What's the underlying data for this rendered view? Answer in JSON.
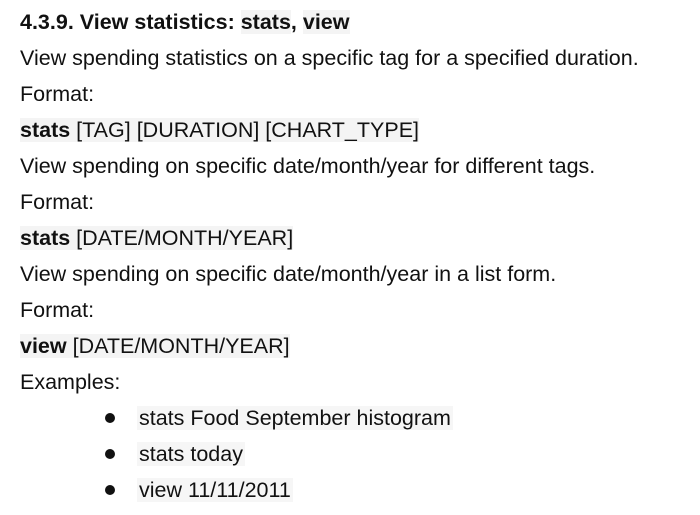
{
  "section": {
    "number": "4.3.9.",
    "title_prefix": "View statistics: ",
    "cmd1": "stats",
    "separator": ", ",
    "cmd2": "view"
  },
  "paragraphs": {
    "p1": "View spending statistics on a specific tag for a specified duration.",
    "format1_label": "Format:",
    "format1_cmd": "stats",
    "format1_args": " [TAG] [DURATION] [CHART_TYPE]",
    "p2": "View spending on specific date/month/year for different tags.",
    "format2_label": "Format:",
    "format2_cmd": "stats",
    "format2_args": " [DATE/MONTH/YEAR]",
    "p3": "View spending on specific date/month/year in a list form.",
    "format3_label": "Format:",
    "format3_cmd": "view",
    "format3_args": " [DATE/MONTH/YEAR]",
    "examples_label": "Examples:"
  },
  "examples": [
    "stats Food September histogram",
    "stats today",
    "view 11/11/2011"
  ]
}
